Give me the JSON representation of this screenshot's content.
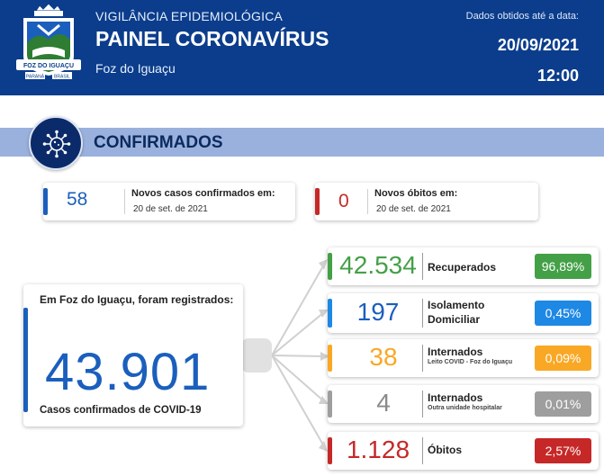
{
  "header": {
    "subtitle": "VIGILÂNCIA EPIDEMIOLÓGICA",
    "title": "PAINEL CORONAVÍRUS",
    "city": "Foz do Iguaçu",
    "date_label": "Dados obtidos até a data:",
    "date": "20/09/2021",
    "time": "12:00",
    "crest_text": "FOZ DO IGUAÇU",
    "crest_left": "PARANÁ",
    "crest_right": "BRASIL"
  },
  "section": {
    "title": "CONFIRMADOS",
    "icon": "virus-icon"
  },
  "new_cases": {
    "value": "58",
    "label": "Novos casos confirmados em:",
    "date": "20 de set. de 2021",
    "color": "#1b5fbd"
  },
  "new_deaths": {
    "value": "0",
    "label": "Novos óbitos em:",
    "date": "20 de set. de 2021",
    "color": "#c62828"
  },
  "total": {
    "title": "Em Foz do Iguaçu, foram registrados:",
    "value": "43.901",
    "caption": "Casos confirmados de COVID-19",
    "color": "#1b5fbd"
  },
  "breakdown": [
    {
      "value": "42.534",
      "label": "Recuperados",
      "sublabel": "",
      "percent": "96,89%",
      "color": "#43a047"
    },
    {
      "value": "197",
      "label": "Isolamento",
      "label2": "Domiciliar",
      "sublabel": "",
      "percent": "0,45%",
      "color": "#1e88e5"
    },
    {
      "value": "38",
      "label": "Internados",
      "sublabel": "Leito COVID - Foz do Iguaçu",
      "percent": "0,09%",
      "color": "#f9a825"
    },
    {
      "value": "4",
      "label": "Internados",
      "sublabel": "Outra unidade hospitalar",
      "percent": "0,01%",
      "color": "#9e9e9e"
    },
    {
      "value": "1.128",
      "label": "Óbitos",
      "sublabel": "",
      "percent": "2,57%",
      "color": "#c62828"
    }
  ]
}
